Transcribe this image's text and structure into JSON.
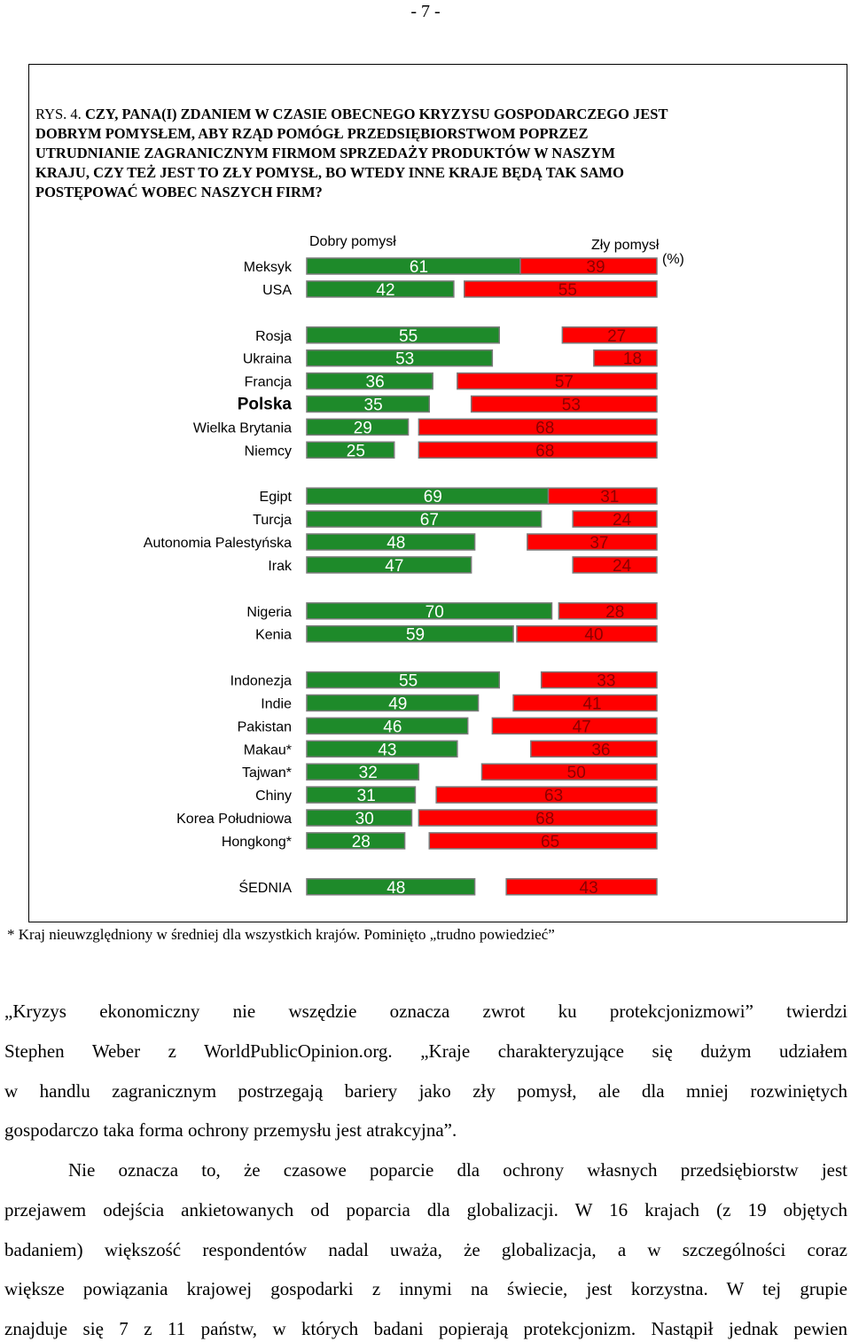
{
  "page_number": "- 7 -",
  "figure": {
    "label": "RYS. 4.",
    "title": "CZY, PANA(I) ZDANIEM W CZASIE OBECNEGO KRYZYSU GOSPODARCZEGO JEST DOBRYM POMYSŁEM, ABY RZĄD POMÓGŁ PRZEDSIĘBIORSTWOM POPRZEZ UTRUDNIANIE ZAGRANICZNYM FIRMOM SPRZEDAŻY PRODUKTÓW W NASZYM KRAJU, CZY TEŻ JEST TO ZŁY POMYSŁ, BO WTEDY INNE KRAJE BĘDĄ TAK SAMO POSTĘPOWAĆ WOBEC NASZYCH FIRM?",
    "title_lines": [
      "CZY, PANA(I) ZDANIEM W CZASIE OBECNEGO KRYZYSU GOSPODARCZEGO JEST",
      "DOBRYM POMYSŁEM, ABY RZĄD POMÓGŁ PRZEDSIĘBIORSTWOM POPRZEZ",
      "UTRUDNIANIE ZAGRANICZNYM FIRMOM SPRZEDAŻY PRODUKTÓW W NASZYM",
      "KRAJU, CZY TEŻ JEST TO ZŁY POMYSŁ, BO WTEDY INNE KRAJE BĘDĄ TAK SAMO",
      "POSTĘPOWAĆ WOBEC NASZYCH FIRM?"
    ]
  },
  "chart_data": {
    "type": "bar",
    "layout": "diverging-horizontal",
    "unit_label": "(%)",
    "series": [
      {
        "name": "Dobry pomysł",
        "color": "#1e8a2a"
      },
      {
        "name": "Zły pomysł",
        "color": "#ff0000"
      }
    ],
    "groups": [
      {
        "rows": [
          {
            "label": "Meksyk",
            "good": 61,
            "bad": 39
          },
          {
            "label": "USA",
            "good": 42,
            "bad": 55
          }
        ]
      },
      {
        "rows": [
          {
            "label": "Rosja",
            "good": 55,
            "bad": 27
          },
          {
            "label": "Ukraina",
            "good": 53,
            "bad": 18
          },
          {
            "label": "Francja",
            "good": 36,
            "bad": 57
          },
          {
            "label": "Polska",
            "good": 35,
            "bad": 53,
            "emphasis": true
          },
          {
            "label": "Wielka Brytania",
            "good": 29,
            "bad": 68
          },
          {
            "label": "Niemcy",
            "good": 25,
            "bad": 68
          }
        ]
      },
      {
        "rows": [
          {
            "label": "Egipt",
            "good": 69,
            "bad": 31
          },
          {
            "label": "Turcja",
            "good": 67,
            "bad": 24
          },
          {
            "label": "Autonomia Palestyńska",
            "good": 48,
            "bad": 37
          },
          {
            "label": "Irak",
            "good": 47,
            "bad": 24
          }
        ]
      },
      {
        "rows": [
          {
            "label": "Nigeria",
            "good": 70,
            "bad": 28
          },
          {
            "label": "Kenia",
            "good": 59,
            "bad": 40
          }
        ]
      },
      {
        "rows": [
          {
            "label": "Indonezja",
            "good": 55,
            "bad": 33
          },
          {
            "label": "Indie",
            "good": 49,
            "bad": 41
          },
          {
            "label": "Pakistan",
            "good": 46,
            "bad": 47
          },
          {
            "label": "Makau*",
            "good": 43,
            "bad": 36
          },
          {
            "label": "Tajwan*",
            "good": 32,
            "bad": 50
          },
          {
            "label": "Chiny",
            "good": 31,
            "bad": 63
          },
          {
            "label": "Korea Południowa",
            "good": 30,
            "bad": 68
          },
          {
            "label": "Hongkong*",
            "good": 28,
            "bad": 65
          }
        ]
      },
      {
        "rows": [
          {
            "label": "ŚEDNIA",
            "good": 48,
            "bad": 43
          }
        ]
      }
    ],
    "scale_max": 100,
    "grid": false,
    "legend": "top"
  },
  "footnote": "* Kraj nieuwzględniony w średniej dla wszystkich krajów. Pominięto „trudno powiedzieć”",
  "paragraphs": [
    {
      "lines": [
        "„Kryzys ekonomiczny nie wszędzie oznacza zwrot ku protekcjonizmowi” twierdzi",
        "Stephen Weber z WorldPublicOpinion.org. „Kraje charakteryzujące się dużym udziałem",
        "w handlu zagranicznym postrzegają bariery jako zły pomysł, ale dla mniej rozwiniętych",
        "gospodarczo taka forma ochrony przemysłu jest atrakcyjna”."
      ]
    },
    {
      "lines": [
        "Nie oznacza to, że czasowe poparcie dla ochrony własnych przedsiębiorstw jest",
        "przejawem odejścia ankietowanych od poparcia dla globalizacji. W 16 krajach (z 19 objętych",
        "badaniem) większość respondentów nadal uważa, że globalizacja, a w szczególności coraz",
        "większe powiązania krajowej gospodarki z innymi na świecie, jest korzystna. W tej grupie",
        "znajduje się 7 z 11 państw, w których badani popierają protekcjonizm. Nastąpił jednak pewien"
      ]
    }
  ]
}
